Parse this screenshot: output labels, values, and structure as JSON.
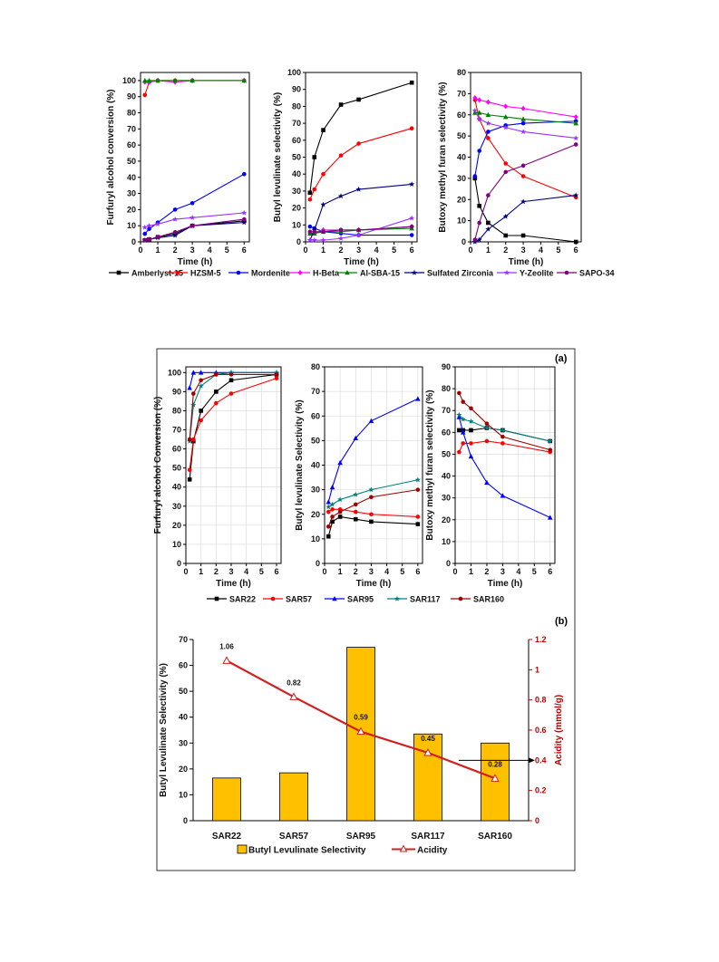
{
  "chart_data": [
    {
      "type": "line",
      "panel": "top-1",
      "xlabel": "Time (h)",
      "ylabel": "Furfuryl alcohol conversion (%)",
      "xlim": [
        0,
        6.3
      ],
      "ylim": [
        0,
        105
      ],
      "xticks": [
        0,
        1,
        2,
        3,
        4,
        5,
        6
      ],
      "yticks": [
        0,
        10,
        20,
        30,
        40,
        50,
        60,
        70,
        80,
        90,
        100
      ],
      "series": [
        {
          "name": "Amberlyst-15",
          "color": "#000000",
          "marker": "square",
          "x": [
            0.25,
            0.5,
            1,
            2,
            3,
            6
          ],
          "y": [
            1,
            1.5,
            3,
            5,
            10,
            13
          ]
        },
        {
          "name": "HZSM-5",
          "color": "#ff0000",
          "marker": "circle",
          "x": [
            0.25,
            0.5,
            1,
            2,
            3,
            6
          ],
          "y": [
            91,
            99,
            100,
            100,
            100,
            100
          ]
        },
        {
          "name": "Mordenite",
          "color": "#0000ff",
          "marker": "circle",
          "x": [
            0.25,
            0.5,
            1,
            2,
            3,
            6
          ],
          "y": [
            5,
            8,
            12,
            20,
            24,
            42
          ]
        },
        {
          "name": "H-Beta",
          "color": "#ff00ff",
          "marker": "diamond",
          "x": [
            0.25,
            0.5,
            1,
            2,
            3,
            6
          ],
          "y": [
            99,
            99,
            100,
            99,
            100,
            100
          ]
        },
        {
          "name": "Al-SBA-15",
          "color": "#008000",
          "marker": "triangle",
          "x": [
            0.25,
            0.5,
            1,
            2,
            3,
            6
          ],
          "y": [
            100,
            100,
            100,
            100,
            100,
            100
          ]
        },
        {
          "name": "Sulfated Zirconia",
          "color": "#000080",
          "marker": "star",
          "x": [
            0.25,
            0.5,
            1,
            2,
            3,
            6
          ],
          "y": [
            1,
            1.5,
            2.5,
            4,
            10,
            12
          ]
        },
        {
          "name": "Y-Zeolite",
          "color": "#9933ff",
          "marker": "star",
          "x": [
            0.25,
            0.5,
            1,
            2,
            3,
            6
          ],
          "y": [
            9,
            10,
            11,
            14,
            15,
            18
          ]
        },
        {
          "name": "SAPO-34",
          "color": "#800080",
          "marker": "circle",
          "x": [
            0.25,
            0.5,
            1,
            2,
            3,
            6
          ],
          "y": [
            1,
            1.5,
            3,
            6,
            10,
            14
          ]
        }
      ]
    },
    {
      "type": "line",
      "panel": "top-2",
      "xlabel": "Time (h)",
      "ylabel": "Butyl levulinate selectivity (%)",
      "xlim": [
        0,
        6.3
      ],
      "ylim": [
        0,
        100
      ],
      "xticks": [
        0,
        1,
        2,
        3,
        4,
        5,
        6
      ],
      "yticks": [
        0,
        10,
        20,
        30,
        40,
        50,
        60,
        70,
        80,
        90,
        100
      ],
      "series": [
        {
          "name": "Amberlyst-15",
          "color": "#000000",
          "marker": "square",
          "x": [
            0.25,
            0.5,
            1,
            2,
            3,
            6
          ],
          "y": [
            29,
            50,
            66,
            81,
            84,
            94
          ]
        },
        {
          "name": "HZSM-5",
          "color": "#ff0000",
          "marker": "circle",
          "x": [
            0.25,
            0.5,
            1,
            2,
            3,
            6
          ],
          "y": [
            25,
            31,
            40,
            51,
            58,
            67
          ]
        },
        {
          "name": "Mordenite",
          "color": "#0000ff",
          "marker": "circle",
          "x": [
            0.25,
            0.5,
            1,
            2,
            3,
            6
          ],
          "y": [
            9,
            8,
            6,
            5,
            4,
            4
          ]
        },
        {
          "name": "H-Beta",
          "color": "#ff00ff",
          "marker": "diamond",
          "x": [
            0.25,
            0.5,
            1,
            2,
            3,
            6
          ],
          "y": [
            5,
            5,
            7,
            7,
            7,
            9
          ]
        },
        {
          "name": "Al-SBA-15",
          "color": "#008000",
          "marker": "triangle",
          "x": [
            0.25,
            0.5,
            1,
            2,
            3,
            6
          ],
          "y": [
            5,
            5,
            6,
            6,
            7,
            8
          ]
        },
        {
          "name": "Sulfated Zirconia",
          "color": "#000080",
          "marker": "star",
          "x": [
            0.25,
            0.5,
            1,
            2,
            3,
            6
          ],
          "y": [
            1,
            7,
            22,
            27,
            31,
            34
          ]
        },
        {
          "name": "Y-Zeolite",
          "color": "#9933ff",
          "marker": "star",
          "x": [
            0.25,
            0.5,
            1,
            2,
            3,
            6
          ],
          "y": [
            1,
            1,
            1,
            2,
            4,
            14
          ]
        },
        {
          "name": "SAPO-34",
          "color": "#800080",
          "marker": "circle",
          "x": [
            0.25,
            0.5,
            1,
            2,
            3,
            6
          ],
          "y": [
            6,
            6,
            6,
            7,
            7,
            9
          ]
        }
      ]
    },
    {
      "type": "line",
      "panel": "top-3",
      "xlabel": "Time (h)",
      "ylabel": "Butoxy methyl furan selectivity (%)",
      "xlim": [
        0,
        6.3
      ],
      "ylim": [
        0,
        80
      ],
      "xticks": [
        0,
        1,
        2,
        3,
        4,
        5,
        6
      ],
      "yticks": [
        0,
        10,
        20,
        30,
        40,
        50,
        60,
        70,
        80
      ],
      "series": [
        {
          "name": "Amberlyst-15",
          "color": "#000000",
          "marker": "square",
          "x": [
            0.25,
            0.5,
            1,
            2,
            3,
            6
          ],
          "y": [
            30,
            17,
            9,
            3,
            3,
            0
          ]
        },
        {
          "name": "HZSM-5",
          "color": "#ff0000",
          "marker": "circle",
          "x": [
            0.25,
            0.5,
            1,
            2,
            3,
            6
          ],
          "y": [
            67,
            58,
            49,
            37,
            31,
            21
          ]
        },
        {
          "name": "Mordenite",
          "color": "#0000ff",
          "marker": "circle",
          "x": [
            0.25,
            0.5,
            1,
            2,
            3,
            6
          ],
          "y": [
            31,
            43,
            52,
            55,
            56,
            57
          ]
        },
        {
          "name": "H-Beta",
          "color": "#ff00ff",
          "marker": "diamond",
          "x": [
            0.25,
            0.5,
            1,
            2,
            3,
            6
          ],
          "y": [
            68,
            67,
            66,
            64,
            63,
            59
          ]
        },
        {
          "name": "Al-SBA-15",
          "color": "#008000",
          "marker": "triangle",
          "x": [
            0.25,
            0.5,
            1,
            2,
            3,
            6
          ],
          "y": [
            61,
            61,
            60,
            59,
            58,
            56
          ]
        },
        {
          "name": "Sulfated Zirconia",
          "color": "#000080",
          "marker": "star",
          "x": [
            0.25,
            0.5,
            1,
            2,
            3,
            6
          ],
          "y": [
            0,
            1,
            6,
            12,
            19,
            22
          ]
        },
        {
          "name": "Y-Zeolite",
          "color": "#9933ff",
          "marker": "star",
          "x": [
            0.25,
            0.5,
            1,
            2,
            3,
            6
          ],
          "y": [
            62,
            58,
            56,
            54,
            52,
            49
          ]
        },
        {
          "name": "SAPO-34",
          "color": "#800080",
          "marker": "circle",
          "x": [
            0.25,
            0.5,
            1,
            2,
            3,
            6
          ],
          "y": [
            1,
            9,
            22,
            33,
            36,
            46
          ]
        }
      ]
    },
    {
      "type": "line",
      "panel": "a-1",
      "xlabel": "Time (h)",
      "ylabel": "Furfuryl alcohol Conversion (%)",
      "xlim": [
        0,
        6.3
      ],
      "ylim": [
        0,
        103
      ],
      "xticks": [
        0,
        1,
        2,
        3,
        4,
        5,
        6
      ],
      "yticks": [
        0,
        10,
        20,
        30,
        40,
        50,
        60,
        70,
        80,
        90,
        100
      ],
      "series": [
        {
          "name": "SAR22",
          "color": "#000000",
          "marker": "square",
          "x": [
            0.25,
            0.5,
            1,
            2,
            3,
            6
          ],
          "y": [
            44,
            64,
            80,
            90,
            96,
            99
          ]
        },
        {
          "name": "SAR57",
          "color": "#ff0000",
          "marker": "circle",
          "x": [
            0.25,
            0.5,
            1,
            2,
            3,
            6
          ],
          "y": [
            49,
            65,
            75,
            84,
            89,
            97
          ]
        },
        {
          "name": "SAR95",
          "color": "#0000ff",
          "marker": "triangle",
          "x": [
            0.25,
            0.5,
            1,
            2,
            3,
            6
          ],
          "y": [
            92,
            100,
            100,
            100,
            100,
            100
          ]
        },
        {
          "name": "SAR117",
          "color": "#008080",
          "marker": "star",
          "x": [
            0.25,
            0.5,
            1,
            2,
            3,
            6
          ],
          "y": [
            64,
            83,
            93,
            99,
            100,
            100
          ]
        },
        {
          "name": "SAR160",
          "color": "#a00000",
          "marker": "circle",
          "x": [
            0.25,
            0.5,
            1,
            2,
            3,
            6
          ],
          "y": [
            65,
            89,
            96,
            99,
            99,
            99
          ]
        }
      ]
    },
    {
      "type": "line",
      "panel": "a-2",
      "xlabel": "Time (h)",
      "ylabel": "Butyl levulinate Selectivity (%)",
      "xlim": [
        0,
        6.3
      ],
      "ylim": [
        0,
        80
      ],
      "xticks": [
        0,
        1,
        2,
        3,
        4,
        5,
        6
      ],
      "yticks": [
        0,
        10,
        20,
        30,
        40,
        50,
        60,
        70,
        80
      ],
      "series": [
        {
          "name": "SAR22",
          "color": "#000000",
          "marker": "square",
          "x": [
            0.25,
            0.5,
            1,
            2,
            3,
            6
          ],
          "y": [
            11,
            17,
            19,
            18,
            17,
            16
          ]
        },
        {
          "name": "SAR57",
          "color": "#ff0000",
          "marker": "circle",
          "x": [
            0.25,
            0.5,
            1,
            2,
            3,
            6
          ],
          "y": [
            21,
            22,
            22,
            21,
            20,
            19
          ]
        },
        {
          "name": "SAR95",
          "color": "#0000ff",
          "marker": "triangle",
          "x": [
            0.25,
            0.5,
            1,
            2,
            3,
            6
          ],
          "y": [
            25,
            31,
            41,
            51,
            58,
            67
          ]
        },
        {
          "name": "SAR117",
          "color": "#008080",
          "marker": "star",
          "x": [
            0.25,
            0.5,
            1,
            2,
            3,
            6
          ],
          "y": [
            23,
            24,
            26,
            28,
            30,
            34
          ]
        },
        {
          "name": "SAR160",
          "color": "#a00000",
          "marker": "circle",
          "x": [
            0.25,
            0.5,
            1,
            2,
            3,
            6
          ],
          "y": [
            15,
            19,
            21,
            24,
            27,
            30
          ]
        }
      ]
    },
    {
      "type": "line",
      "panel": "a-3",
      "xlabel": "Time (h)",
      "ylabel": "Butoxy methyl furan selectivity (%)",
      "xlim": [
        0,
        6.3
      ],
      "ylim": [
        0,
        90
      ],
      "xticks": [
        0,
        1,
        2,
        3,
        4,
        5,
        6
      ],
      "yticks": [
        0,
        10,
        20,
        30,
        40,
        50,
        60,
        70,
        80,
        90
      ],
      "series": [
        {
          "name": "SAR22",
          "color": "#000000",
          "marker": "square",
          "x": [
            0.25,
            0.5,
            1,
            2,
            3,
            6
          ],
          "y": [
            61,
            61,
            61,
            62,
            61,
            56
          ]
        },
        {
          "name": "SAR57",
          "color": "#ff0000",
          "marker": "circle",
          "x": [
            0.25,
            0.5,
            1,
            2,
            3,
            6
          ],
          "y": [
            51,
            55,
            55,
            56,
            55,
            51
          ]
        },
        {
          "name": "SAR95",
          "color": "#0000ff",
          "marker": "triangle",
          "x": [
            0.25,
            0.5,
            1,
            2,
            3,
            6
          ],
          "y": [
            67,
            60,
            49,
            37,
            31,
            21
          ]
        },
        {
          "name": "SAR117",
          "color": "#008080",
          "marker": "star",
          "x": [
            0.25,
            0.5,
            1,
            2,
            3,
            6
          ],
          "y": [
            68,
            66,
            65,
            62,
            61,
            56
          ]
        },
        {
          "name": "SAR160",
          "color": "#a00000",
          "marker": "circle",
          "x": [
            0.25,
            0.5,
            1,
            2,
            3,
            6
          ],
          "y": [
            78,
            74,
            71,
            64,
            58,
            52
          ]
        }
      ]
    },
    {
      "type": "bar",
      "panel": "b",
      "categories": [
        "SAR22",
        "SAR57",
        "SAR95",
        "SAR117",
        "SAR160"
      ],
      "ylabel": "Butyl Levulinate Selectivity (%)",
      "y2label": "Acidity (mmol/g)",
      "ylim": [
        0,
        70
      ],
      "y2lim": [
        0,
        1.2
      ],
      "yticks": [
        0,
        10,
        20,
        30,
        40,
        50,
        60,
        70
      ],
      "y2ticks": [
        "0",
        "0.2",
        "0.4",
        "0.6",
        "0.8",
        "1",
        "1.2"
      ],
      "bar_series": {
        "name": "Butyl Levulinate Selectivity",
        "color": "#ffc000",
        "values": [
          16.5,
          18.5,
          67,
          33.5,
          30
        ]
      },
      "line_series": {
        "name": "Acidity",
        "color": "#d02020",
        "values": [
          1.06,
          0.82,
          0.59,
          0.45,
          0.28
        ],
        "labels": [
          "1.06",
          "0.82",
          "0.59",
          "0.45",
          "0.28"
        ]
      }
    }
  ],
  "labels": {
    "panel_a": "(a)",
    "panel_b": "(b)"
  }
}
